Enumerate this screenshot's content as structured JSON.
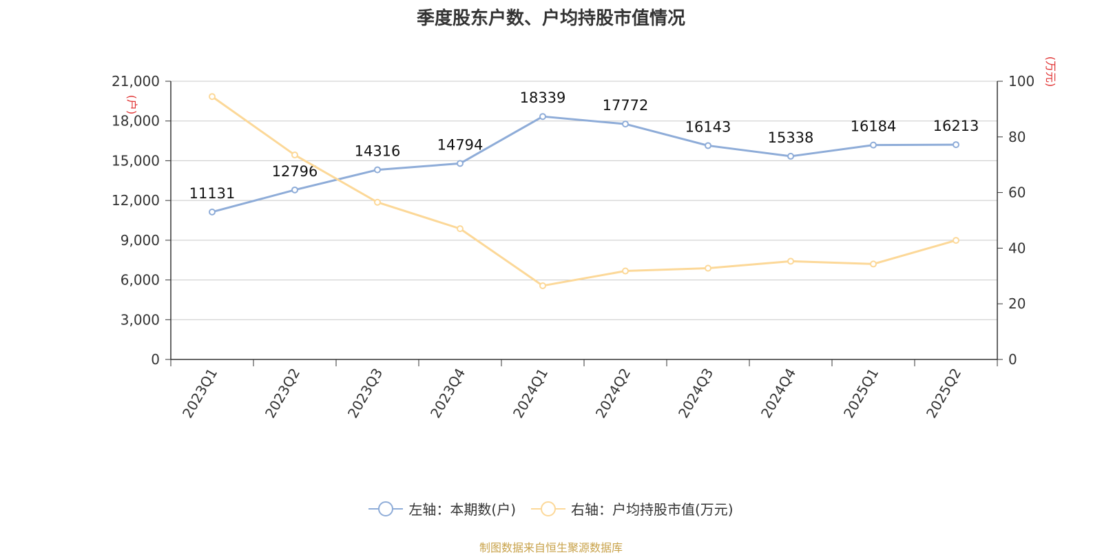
{
  "chart_data": {
    "type": "line",
    "title": "季度股东户数、户均持股市值情况",
    "categories": [
      "2023Q1",
      "2023Q2",
      "2023Q3",
      "2023Q4",
      "2024Q1",
      "2024Q2",
      "2024Q3",
      "2024Q4",
      "2025Q1",
      "2025Q2"
    ],
    "series": [
      {
        "name": "左轴：本期数(户)",
        "axis": "left",
        "color": "#8eacd8",
        "values": [
          11131,
          12796,
          14316,
          14794,
          18339,
          17772,
          16143,
          15338,
          16184,
          16213
        ],
        "labels": [
          "11131",
          "12796",
          "14316",
          "14794",
          "18339",
          "17772",
          "16143",
          "15338",
          "16184",
          "16213"
        ]
      },
      {
        "name": "右轴：户均持股市值(万元)",
        "axis": "right",
        "color": "#fcd898",
        "values": [
          94.5,
          73.5,
          56.5,
          47.0,
          26.5,
          31.8,
          32.8,
          35.3,
          34.3,
          42.8
        ]
      }
    ],
    "left_axis": {
      "unit": "(户)",
      "range": [
        0,
        21000
      ],
      "ticks": [
        0,
        3000,
        6000,
        9000,
        12000,
        15000,
        18000,
        21000
      ],
      "tick_labels": [
        "0",
        "3,000",
        "6,000",
        "9,000",
        "12,000",
        "15,000",
        "18,000",
        "21,000"
      ]
    },
    "right_axis": {
      "unit": "(万元)",
      "range": [
        0,
        100
      ],
      "ticks": [
        0,
        20,
        40,
        60,
        80,
        100
      ],
      "tick_labels": [
        "0",
        "20",
        "40",
        "60",
        "80",
        "100"
      ]
    },
    "grid": true,
    "legend_position": "bottom",
    "axis_color": "#333333",
    "grid_color": "#c8c8c8"
  },
  "source": "制图数据来自恒生聚源数据库"
}
